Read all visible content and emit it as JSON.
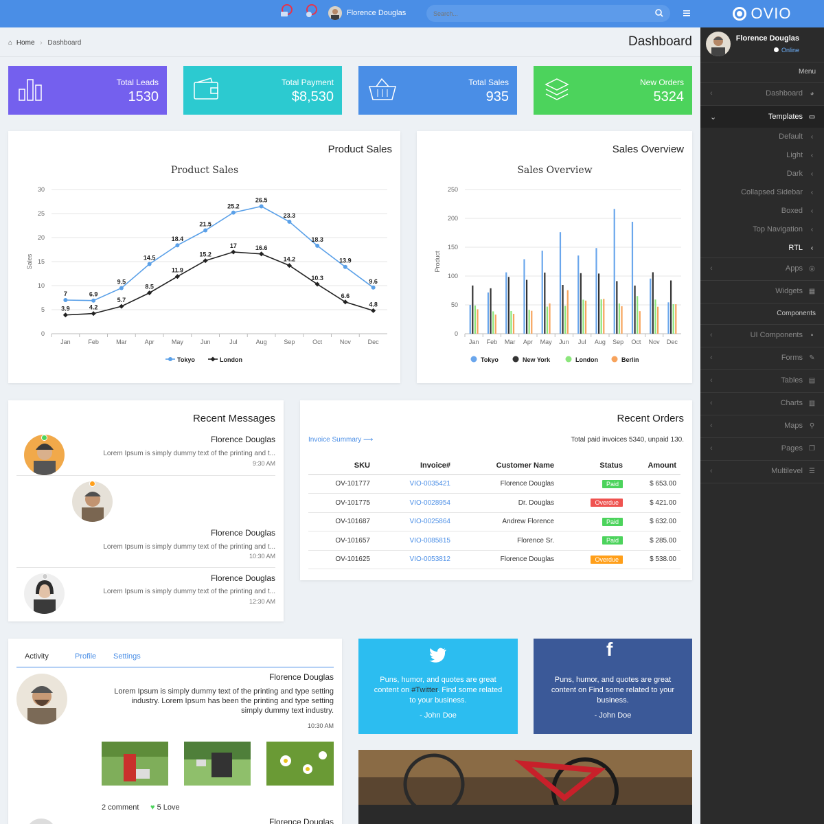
{
  "topbar": {
    "user": "Florence Douglas",
    "search_placeholder": "Search..."
  },
  "brand": {
    "name": "OVIO"
  },
  "profile": {
    "name": "Florence Douglas",
    "status": "Online"
  },
  "breadcrumb": {
    "home": "Home",
    "current": "Dashboard"
  },
  "page_title": "Dashboard",
  "stats": [
    {
      "label": "Total Leads",
      "value": "1530",
      "color": "#7460ee"
    },
    {
      "label": "Total Payment",
      "value": "$8,530",
      "color": "#2ccad0"
    },
    {
      "label": "Total Sales",
      "value": "935",
      "color": "#4a8ee6"
    },
    {
      "label": "New Orders",
      "value": "5324",
      "color": "#4cd35c"
    }
  ],
  "menu": {
    "header": "Menu",
    "items": [
      "Dashboard",
      "Templates",
      "Default",
      "Light",
      "Dark",
      "Collapsed Sidebar",
      "Boxed",
      "Top Navigation",
      "RTL",
      "Apps",
      "Widgets"
    ],
    "components_header": "Components",
    "components": [
      "UI Components",
      "Forms",
      "Tables",
      "Charts",
      "Maps",
      "Pages",
      "Multilevel"
    ]
  },
  "product_sales": {
    "card_title": "Product Sales",
    "title": "Product Sales",
    "ylabel": "Sales",
    "legend": [
      "Tokyo",
      "London"
    ]
  },
  "sales_overview": {
    "card_title": "Sales Overview",
    "title": "Sales Overview",
    "ylabel": "Product",
    "legend": [
      "Tokyo",
      "New York",
      "London",
      "Berlin"
    ]
  },
  "chart_data": [
    {
      "type": "line",
      "title": "Product Sales",
      "ylabel": "Sales",
      "ylim": [
        0,
        30
      ],
      "yticks": [
        0,
        5,
        10,
        15,
        20,
        25,
        30
      ],
      "categories": [
        "Jan",
        "Feb",
        "Mar",
        "Apr",
        "May",
        "Jun",
        "Jul",
        "Aug",
        "Sep",
        "Oct",
        "Nov",
        "Dec"
      ],
      "series": [
        {
          "name": "Tokyo",
          "color": "#5aa0e8",
          "values": [
            7,
            6.9,
            9.5,
            14.5,
            18.4,
            21.5,
            25.2,
            26.5,
            23.3,
            18.3,
            13.9,
            9.6
          ]
        },
        {
          "name": "London",
          "color": "#222222",
          "values": [
            3.9,
            4.2,
            5.7,
            8.5,
            11.9,
            15.2,
            17,
            16.6,
            14.2,
            10.3,
            6.6,
            4.8
          ]
        }
      ],
      "legend": "bottom"
    },
    {
      "type": "bar",
      "title": "Sales Overview",
      "ylabel": "Product",
      "ylim": [
        0,
        250
      ],
      "yticks": [
        0,
        50,
        100,
        150,
        200,
        250
      ],
      "categories": [
        "Jan",
        "Feb",
        "Mar",
        "Apr",
        "May",
        "Jun",
        "Jul",
        "Aug",
        "Sep",
        "Oct",
        "Nov",
        "Dec"
      ],
      "series": [
        {
          "name": "Tokyo",
          "color": "#6aa6ec",
          "values": [
            49.9,
            71.5,
            106.4,
            129.2,
            144,
            176,
            135.6,
            148.5,
            216.4,
            194.1,
            95.6,
            54.4
          ]
        },
        {
          "name": "New York",
          "color": "#333333",
          "values": [
            83.6,
            78.8,
            98.5,
            93.4,
            106,
            84.5,
            105,
            104.3,
            91.2,
            83.5,
            106.6,
            92.3
          ]
        },
        {
          "name": "London",
          "color": "#8ce67c",
          "values": [
            48.9,
            38.8,
            39.3,
            41.4,
            47,
            48.3,
            59,
            59.6,
            52.4,
            65.2,
            59.3,
            51.2
          ]
        },
        {
          "name": "Berlin",
          "color": "#f7a35c",
          "values": [
            42.4,
            33.2,
            34.5,
            39.7,
            52.6,
            75.5,
            57.4,
            60.4,
            47.6,
            39.1,
            46.8,
            51.1
          ]
        }
      ],
      "legend": "bottom"
    }
  ],
  "messages": {
    "title": "Recent Messages",
    "items": [
      {
        "name": "Florence Douglas",
        "text": "Lorem Ipsum is simply dummy text of the printing and t...",
        "time": "9:30 AM"
      },
      {
        "name": "Florence Douglas",
        "text": "Lorem Ipsum is simply dummy text of the printing and t...",
        "time": "10:30 AM"
      },
      {
        "name": "Florence Douglas",
        "text": "Lorem Ipsum is simply dummy text of the printing and t...",
        "time": "12:30 AM"
      }
    ]
  },
  "orders": {
    "title": "Recent Orders",
    "summary_link": "Invoice Summary",
    "summary_text": "Total paid invoices 5340, unpaid 130.",
    "headers": [
      "SKU",
      "Invoice#",
      "Customer Name",
      "Status",
      "Amount"
    ],
    "rows": [
      [
        "OV-101777",
        "VIO-0035421",
        "Florence Douglas",
        "Paid",
        "$ 653.00"
      ],
      [
        "OV-101775",
        "VIO-0028954",
        "Dr. Douglas",
        "Overdue",
        "$ 421.00"
      ],
      [
        "OV-101687",
        "VIO-0025864",
        "Andrew Florence",
        "Paid",
        "$ 632.00"
      ],
      [
        "OV-101657",
        "VIO-0085815",
        "Florence Sr.",
        "Paid",
        "$ 285.00"
      ],
      [
        "OV-101625",
        "VIO-0053812",
        "Florence Douglas",
        "Overdue",
        "$ 538.00"
      ]
    ],
    "status_colors": [
      "#4cd35c",
      "#ef5350",
      "#4cd35c",
      "#4cd35c",
      "#ff9f1a"
    ]
  },
  "activity": {
    "tabs": [
      "Activity",
      "Profile",
      "Settings"
    ],
    "name": "Florence Douglas",
    "text1": "Lorem Ipsum is simply dummy text of the printing and type setting",
    "text2": "industry. Lorem Ipsum has been the printing and type setting",
    "text3": "simply dummy text industry.",
    "time": "10:30 AM",
    "comments": "2 comment",
    "love": "5 Love",
    "name2": "Florence Douglas"
  },
  "twitter": {
    "text_a": "Puns, humor, and quotes are great",
    "text_b": "content on ",
    "hashtag": "#Twitter",
    "text_c": ". Find some related",
    "text_d": "to your business.",
    "author": "- John Doe"
  },
  "facebook": {
    "text_a": "Puns, humor, and quotes are great",
    "text_b": "content on Find some related to your",
    "text_c": "business.",
    "author": "- John Doe"
  }
}
